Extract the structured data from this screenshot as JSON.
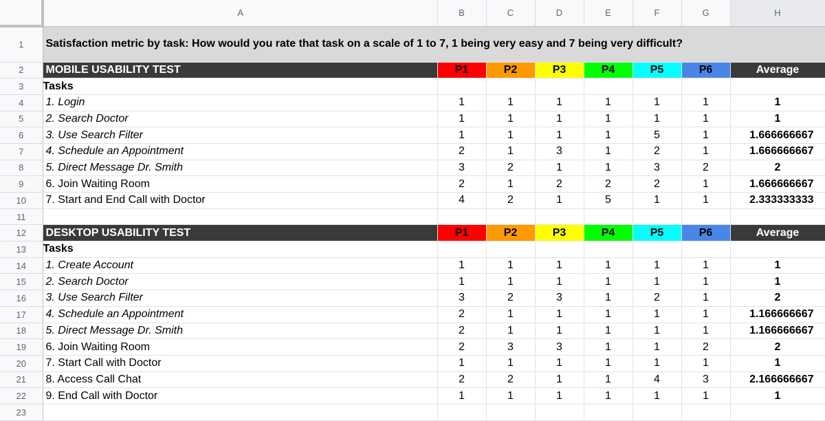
{
  "columns": [
    "A",
    "B",
    "C",
    "D",
    "E",
    "F",
    "G",
    "H"
  ],
  "title": "Satisfaction metric by task: How would you rate that task on a scale of 1 to 7, 1 being very easy and 7 being very difficult?",
  "participant_colors": [
    "#ff0000",
    "#ff9900",
    "#ffff00",
    "#00ff00",
    "#00ffff",
    "#4a86e8"
  ],
  "mobile": {
    "header": "MOBILE USABILITY TEST",
    "participants": [
      "P1",
      "P2",
      "P3",
      "P4",
      "P5",
      "P6"
    ],
    "average_label": "Average",
    "tasks_label": "Tasks",
    "rows": [
      {
        "task": "1. Login",
        "values": [
          "1",
          "1",
          "1",
          "1",
          "1",
          "1"
        ],
        "average": "1"
      },
      {
        "task": "2. Search Doctor",
        "values": [
          "1",
          "1",
          "1",
          "1",
          "1",
          "1"
        ],
        "average": "1"
      },
      {
        "task": "3. Use Search Filter",
        "values": [
          "1",
          "1",
          "1",
          "1",
          "5",
          "1"
        ],
        "average": "1.666666667"
      },
      {
        "task": "4. Schedule an Appointment",
        "values": [
          "2",
          "1",
          "3",
          "1",
          "2",
          "1"
        ],
        "average": "1.666666667"
      },
      {
        "task": "5. Direct Message Dr. Smith",
        "values": [
          "3",
          "2",
          "1",
          "1",
          "3",
          "2"
        ],
        "average": "2"
      },
      {
        "task": "6. Join Waiting Room",
        "values": [
          "2",
          "1",
          "2",
          "2",
          "2",
          "1"
        ],
        "average": "1.666666667"
      },
      {
        "task": "7. Start and End Call with Doctor",
        "values": [
          "4",
          "2",
          "1",
          "5",
          "1",
          "1"
        ],
        "average": "2.333333333"
      }
    ]
  },
  "desktop": {
    "header": "DESKTOP USABILITY TEST",
    "participants": [
      "P1",
      "P2",
      "P3",
      "P4",
      "P5",
      "P6"
    ],
    "average_label": "Average",
    "tasks_label": "Tasks",
    "rows": [
      {
        "task": "1. Create Account",
        "values": [
          "1",
          "1",
          "1",
          "1",
          "1",
          "1"
        ],
        "average": "1"
      },
      {
        "task": "2. Search Doctor",
        "values": [
          "1",
          "1",
          "1",
          "1",
          "1",
          "1"
        ],
        "average": "1"
      },
      {
        "task": "3. Use Search Filter",
        "values": [
          "3",
          "2",
          "3",
          "1",
          "2",
          "1"
        ],
        "average": "2"
      },
      {
        "task": "4. Schedule an Appointment",
        "values": [
          "2",
          "1",
          "1",
          "1",
          "1",
          "1"
        ],
        "average": "1.166666667"
      },
      {
        "task": "5. Direct Message Dr. Smith",
        "values": [
          "2",
          "1",
          "1",
          "1",
          "1",
          "1"
        ],
        "average": "1.166666667"
      },
      {
        "task": "6. Join Waiting Room",
        "values": [
          "2",
          "3",
          "3",
          "1",
          "1",
          "2"
        ],
        "average": "2"
      },
      {
        "task": "7. Start Call with Doctor",
        "values": [
          "1",
          "1",
          "1",
          "1",
          "1",
          "1"
        ],
        "average": "1"
      },
      {
        "task": "8. Access Call Chat",
        "values": [
          "2",
          "2",
          "1",
          "1",
          "4",
          "3"
        ],
        "average": "2.166666667"
      },
      {
        "task": "9. End Call with Doctor",
        "values": [
          "1",
          "1",
          "1",
          "1",
          "1",
          "1"
        ],
        "average": "1"
      }
    ]
  }
}
